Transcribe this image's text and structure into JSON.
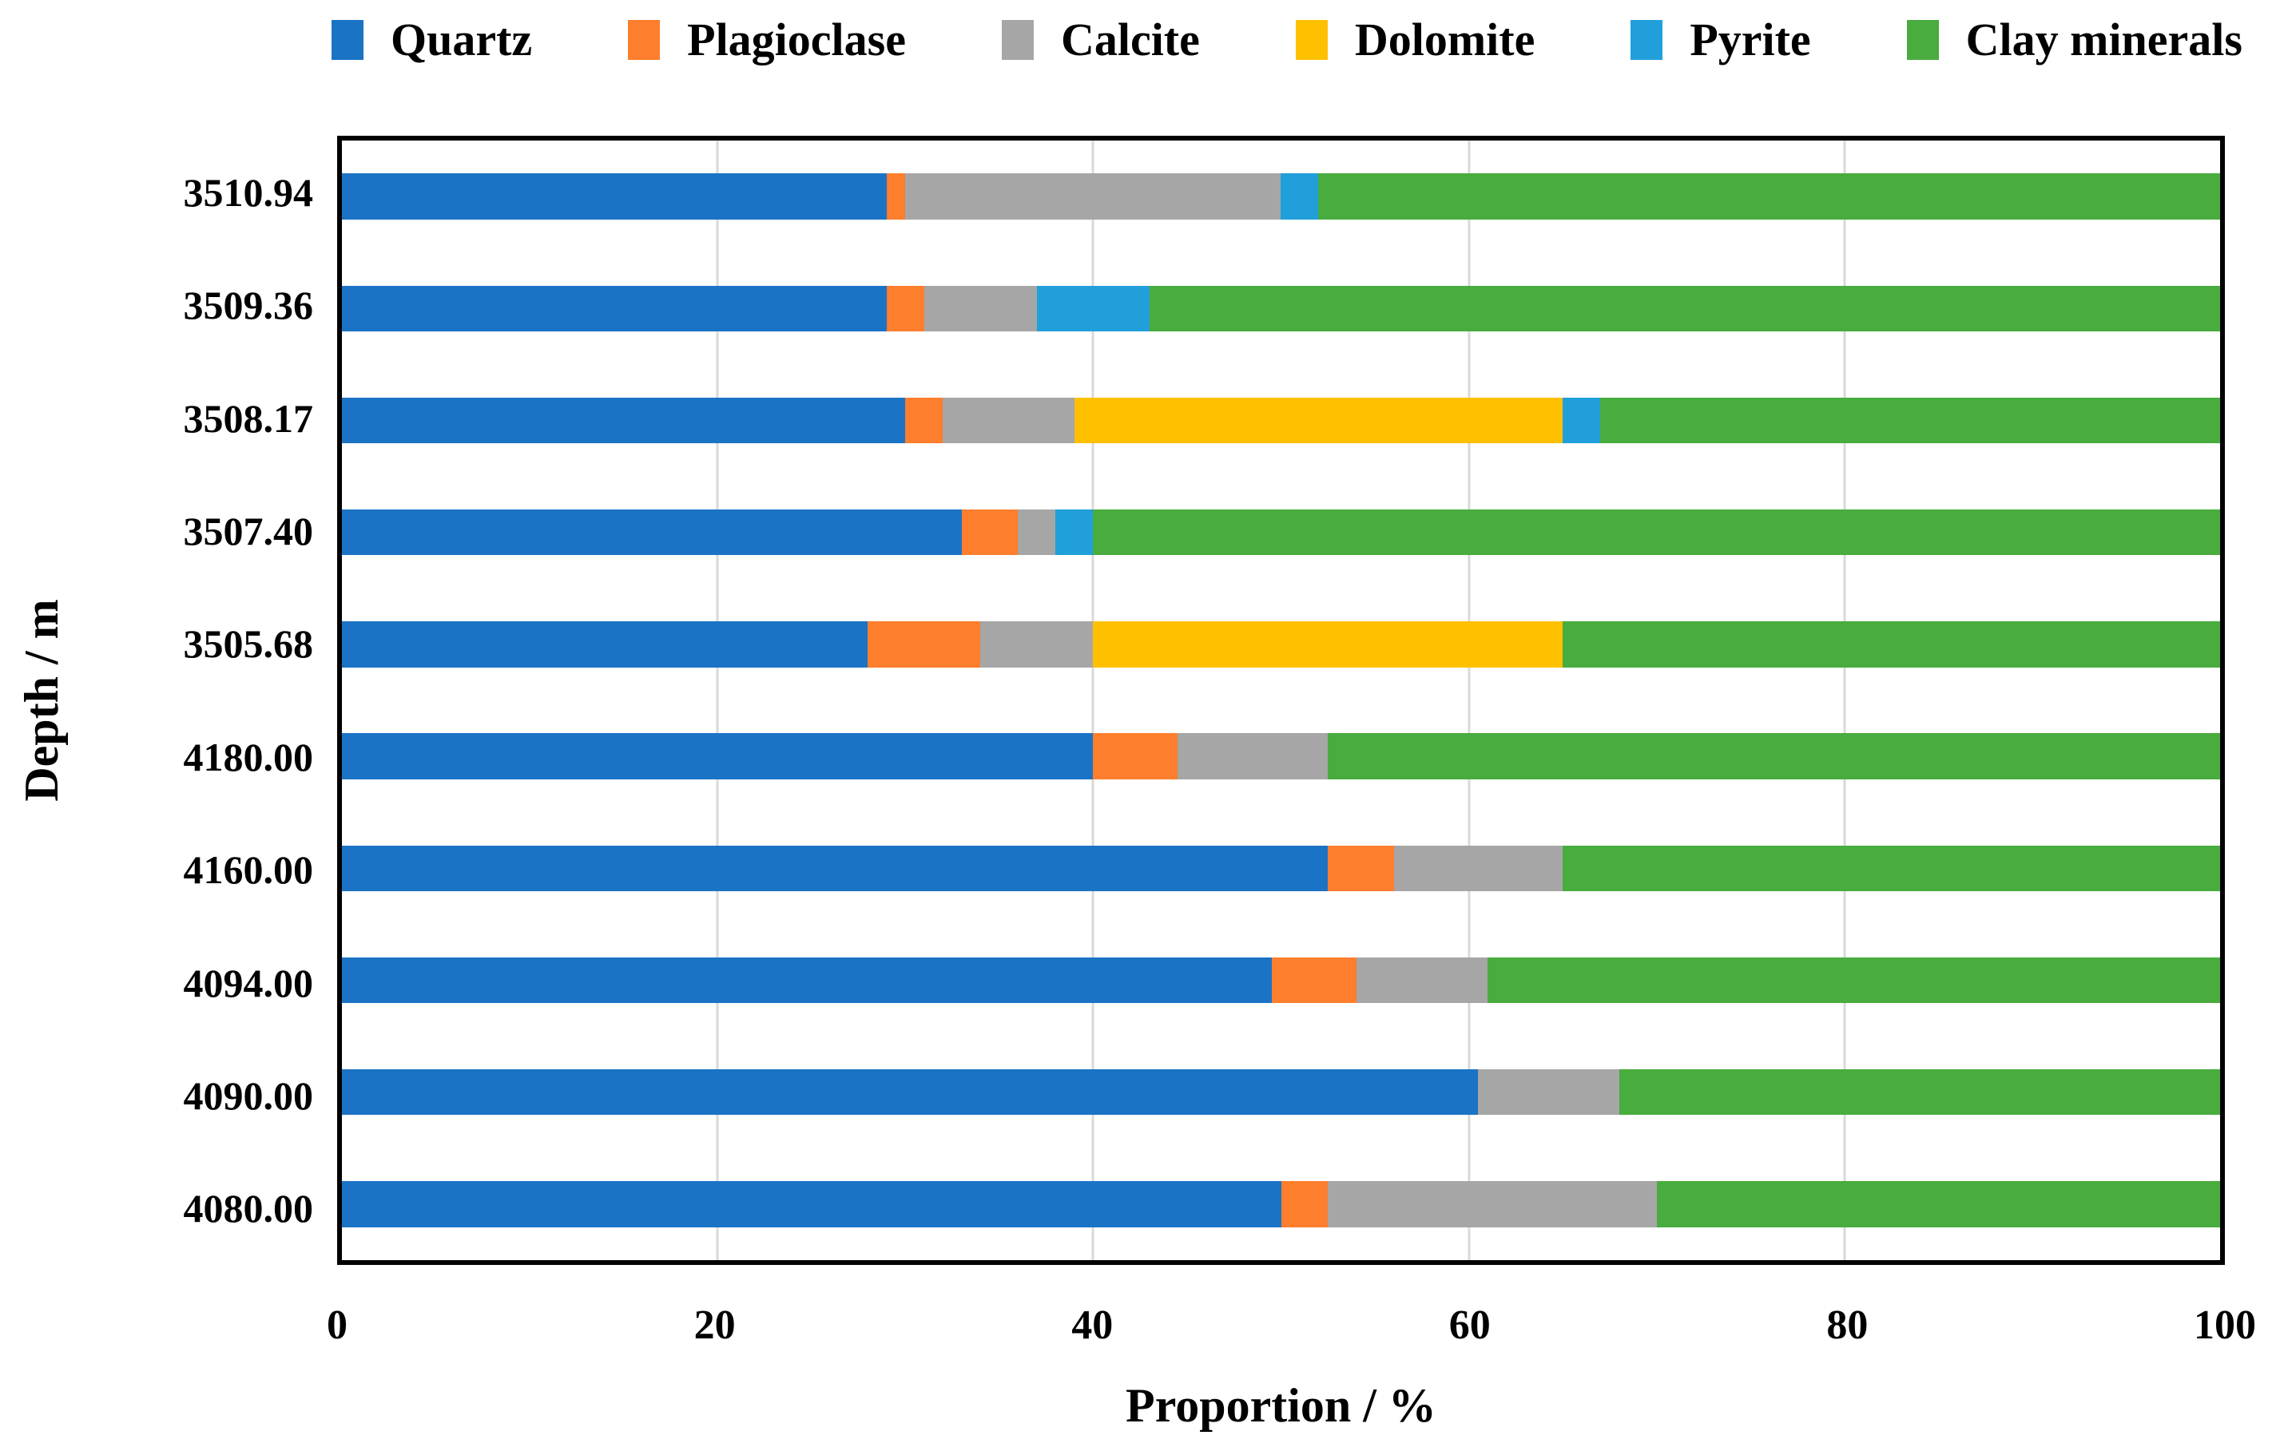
{
  "chart_data": {
    "type": "bar",
    "variant": "horizontal-stacked",
    "title": "",
    "xlabel": "Proportion / %",
    "ylabel": "Depth / m",
    "xlim": [
      0,
      100
    ],
    "x_ticks": [
      0,
      20,
      40,
      60,
      80,
      100
    ],
    "x_gridlines": [
      20,
      40,
      60,
      80
    ],
    "grid": "vertical-only",
    "legend_position": "top",
    "plot_border_color": "#000000",
    "gridline_color": "#D9D9D9",
    "categories": [
      "3510.94",
      "3509.36",
      "3508.17",
      "3507.40",
      "3505.68",
      "4180.00",
      "4160.00",
      "4094.00",
      "4090.00",
      "4080.00"
    ],
    "series": [
      {
        "name": "Quartz",
        "color": "#1B73C5",
        "values": [
          29,
          29,
          30,
          33,
          28,
          40,
          52.5,
          49.5,
          60.5,
          50
        ]
      },
      {
        "name": "Plagioclase",
        "color": "#FD7E2C",
        "values": [
          1,
          2,
          2,
          3,
          6,
          4.5,
          3.5,
          4.5,
          0,
          2.5
        ]
      },
      {
        "name": "Calcite",
        "color": "#A6A6A6",
        "values": [
          20,
          6,
          7,
          2,
          6,
          8,
          9,
          7,
          7.5,
          17.5
        ]
      },
      {
        "name": "Dolomite",
        "color": "#FFC000",
        "values": [
          0,
          0,
          26,
          0,
          25,
          0,
          0,
          0,
          0,
          0
        ]
      },
      {
        "name": "Pyrite",
        "color": "#219FDA",
        "values": [
          2,
          6,
          2,
          2,
          0,
          0,
          0,
          0,
          0,
          0
        ]
      },
      {
        "name": "Clay minerals",
        "color": "#49AC3E",
        "values": [
          48,
          57,
          33,
          60,
          35,
          47.5,
          35,
          39,
          32,
          30
        ]
      }
    ]
  }
}
